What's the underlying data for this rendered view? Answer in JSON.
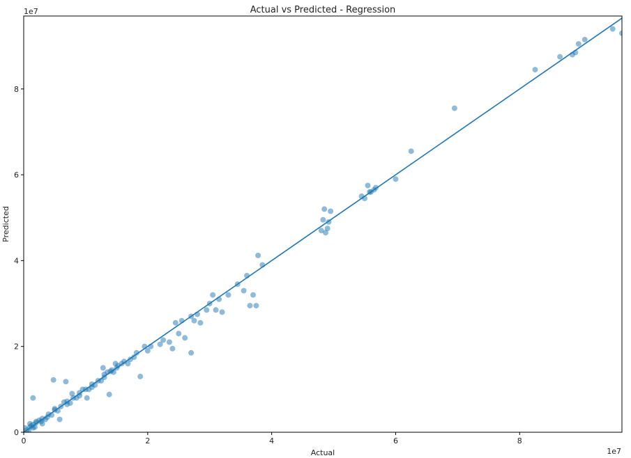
{
  "chart_data": {
    "type": "scatter",
    "title": "Actual vs Predicted - Regression",
    "xlabel": "Actual",
    "ylabel": "Predicted",
    "x_offset_label": "1e7",
    "y_offset_label": "1e7",
    "xlim": [
      0,
      9.65
    ],
    "ylim": [
      0,
      9.7
    ],
    "xticks": [
      0,
      2,
      4,
      6,
      8
    ],
    "yticks": [
      0,
      2,
      4,
      6,
      8
    ],
    "xtick_labels": [
      "0",
      "2",
      "4",
      "6",
      "8"
    ],
    "ytick_labels": [
      "0",
      "2",
      "4",
      "6",
      "8"
    ],
    "grid": false,
    "colors": {
      "points": "#1f77b4",
      "line": "#1f77b4"
    },
    "reference_line": {
      "x": [
        0,
        9.65
      ],
      "y": [
        0,
        9.65
      ]
    },
    "series": [
      {
        "x": [
          0.05,
          0.1,
          0.15,
          0.2,
          0.25,
          0.3,
          0.4,
          0.5,
          0.6,
          0.7,
          0.8,
          0.9,
          1.0,
          1.1,
          1.2,
          1.3,
          1.4,
          1.5,
          0.1,
          0.2,
          0.3,
          0.45,
          0.55,
          0.65,
          0.75,
          0.85,
          0.95,
          1.05,
          1.15,
          1.25,
          1.35,
          1.45,
          0.15,
          0.35,
          0.5,
          0.7,
          0.9,
          1.1,
          1.3,
          0.02,
          0.08,
          0.12,
          0.18,
          0.28,
          0.38,
          0.15,
          0.48,
          0.68,
          0.58,
          0.78,
          1.02,
          1.38,
          1.28,
          1.42,
          1.48,
          1.52,
          1.58,
          1.62,
          1.68,
          1.72,
          1.78,
          1.82,
          1.88,
          1.95,
          2.05,
          2.2,
          2.35,
          2.45,
          2.55,
          2.4,
          2.5,
          2.6,
          2.7,
          2.75,
          2.8,
          2.85,
          2.95,
          2.0,
          2.25,
          2.7,
          3.0,
          3.05,
          3.1,
          3.15,
          3.2,
          3.3,
          3.45,
          3.55,
          3.65,
          3.75,
          3.78,
          3.6,
          3.7,
          3.85,
          4.8,
          4.83,
          4.87,
          4.9,
          4.95,
          4.85,
          4.92,
          5.45,
          5.5,
          5.55,
          5.58,
          5.6,
          5.65,
          5.68,
          6.0,
          6.25,
          6.95,
          8.25,
          8.65,
          8.85,
          8.9,
          8.95,
          9.05,
          9.5,
          9.65
        ],
        "y": [
          0.05,
          0.12,
          0.18,
          0.22,
          0.28,
          0.32,
          0.42,
          0.52,
          0.6,
          0.72,
          0.8,
          0.92,
          1.0,
          1.12,
          1.2,
          1.28,
          1.42,
          1.5,
          0.2,
          0.25,
          0.2,
          0.4,
          0.5,
          0.7,
          0.68,
          0.8,
          1.0,
          1.0,
          1.1,
          1.2,
          1.4,
          1.4,
          0.1,
          0.3,
          0.55,
          0.65,
          0.85,
          1.05,
          1.35,
          0.1,
          0.02,
          0.15,
          0.12,
          0.25,
          0.35,
          0.8,
          1.22,
          1.18,
          0.3,
          0.9,
          0.8,
          0.88,
          1.5,
          1.45,
          1.6,
          1.55,
          1.6,
          1.65,
          1.6,
          1.7,
          1.75,
          1.85,
          1.3,
          2.0,
          2.0,
          2.05,
          2.1,
          2.55,
          2.6,
          1.95,
          2.3,
          2.2,
          2.7,
          2.6,
          2.75,
          2.55,
          2.85,
          1.9,
          2.15,
          1.85,
          3.0,
          3.2,
          2.85,
          3.1,
          2.8,
          3.2,
          3.45,
          3.3,
          2.95,
          2.95,
          4.12,
          3.65,
          3.2,
          3.9,
          4.7,
          4.95,
          4.65,
          4.75,
          5.15,
          5.2,
          4.9,
          5.5,
          5.45,
          5.75,
          5.6,
          5.6,
          5.65,
          5.7,
          5.9,
          6.55,
          7.55,
          8.45,
          8.75,
          8.8,
          8.85,
          9.05,
          9.15,
          9.4,
          9.3
        ]
      }
    ]
  }
}
